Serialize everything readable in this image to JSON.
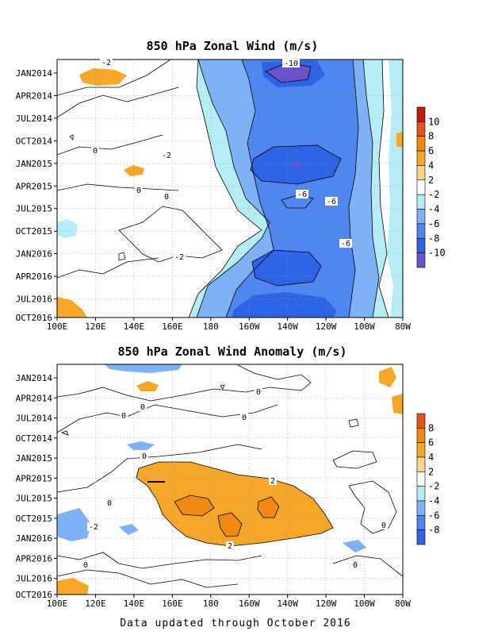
{
  "footer": "Data updated through October 2016",
  "colors": {
    "n10": "#6a52cc",
    "n8": "#2f63e6",
    "n6": "#4f86f0",
    "n4": "#7fb1f6",
    "n2": "#b6ecf6",
    "zero": "#ffffff",
    "p2": "#fad48a",
    "p4": "#f5a72a",
    "p6": "#f08a12",
    "p8": "#e0561a",
    "p10": "#c01b10"
  },
  "chart_data": [
    {
      "type": "heatmap",
      "title": "850 hPa Zonal Wind (m/s)",
      "x_ticks": [
        "100E",
        "120E",
        "140E",
        "160E",
        "180",
        "160W",
        "140W",
        "120W",
        "100W",
        "80W"
      ],
      "y_ticks": [
        "JAN2014",
        "APR2014",
        "JUL2014",
        "OCT2014",
        "JAN2015",
        "APR2015",
        "JUL2015",
        "OCT2015",
        "JAN2016",
        "APR2016",
        "JUL2016",
        "OCT2016"
      ],
      "colorbar_labels": [
        "10",
        "8",
        "6",
        "4",
        "2",
        "-2",
        "-4",
        "-6",
        "-8",
        "-10"
      ],
      "contour_labels": [
        "-2",
        "0",
        "-2",
        "0",
        "0",
        "-2",
        "-10",
        "-6",
        "-6",
        "-6"
      ],
      "grid": true
    },
    {
      "type": "heatmap",
      "title": "850 hPa Zonal Wind Anomaly (m/s)",
      "x_ticks": [
        "100E",
        "120E",
        "140E",
        "160E",
        "180",
        "160W",
        "140W",
        "120W",
        "100W",
        "80W"
      ],
      "y_ticks": [
        "JAN2014",
        "APR2014",
        "JUL2014",
        "OCT2014",
        "JAN2015",
        "APR2015",
        "JUL2015",
        "OCT2015",
        "JAN2016",
        "APR2016",
        "JUL2016",
        "OCT2016"
      ],
      "colorbar_labels": [
        "8",
        "6",
        "4",
        "2",
        "-2",
        "-4",
        "-6",
        "-8"
      ],
      "contour_labels": [
        "0",
        "0",
        "0",
        "0",
        "0",
        "2",
        "0",
        "-2",
        "2",
        "0",
        "0",
        "0"
      ],
      "grid": true
    }
  ]
}
